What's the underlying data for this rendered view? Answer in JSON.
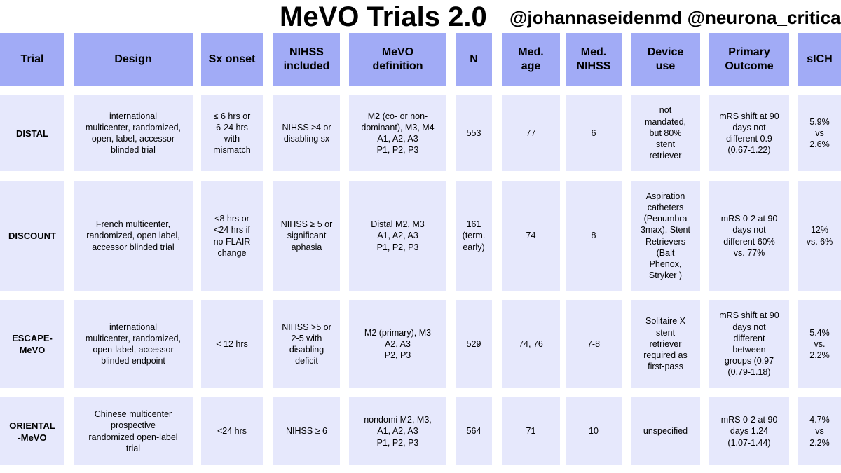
{
  "title": "MeVO Trials 2.0",
  "handles": "@johannaseidenmd @neurona_critica",
  "colors": {
    "header_bg": "#a1abf6",
    "cell_bg": "#e6e8fc"
  },
  "columns": [
    "Trial",
    "Design",
    "Sx onset",
    "NIHSS\nincluded",
    "MeVO\ndefinition",
    "N",
    "Med.\nage",
    "Med.\nNIHSS",
    "Device\nuse",
    "Primary\nOutcome",
    "sICH"
  ],
  "rows": [
    [
      "DISTAL",
      "international\nmulticenter, randomized,\nopen, label, accessor\nblinded trial",
      "≤ 6 hrs or\n6-24 hrs\nwith\nmismatch",
      "NIHSS ≥4 or\ndisabling sx",
      "M2 (co- or non-\ndominant), M3, M4\nA1, A2, A3\nP1, P2, P3",
      "553",
      "77",
      "6",
      "not\nmandated,\nbut 80%\nstent\nretriever",
      "mRS shift at 90\ndays not\ndifferent  0.9\n(0.67-1.22)",
      "5.9%\nvs\n2.6%"
    ],
    [
      "DISCOUNT",
      "French multicenter,\nrandomized, open label,\naccessor blinded trial",
      "<8 hrs or\n<24 hrs if\nno FLAIR\nchange",
      "NIHSS ≥ 5 or\nsignificant\naphasia",
      "Distal M2, M3\nA1, A2, A3\nP1, P2, P3",
      "161\n(term.\nearly)",
      "74",
      "8",
      "Aspiration\ncatheters\n(Penumbra\n3max), Stent\nRetrievers\n(Balt\nPhenox,\nStryker )",
      "mRS 0-2 at 90\ndays not\ndifferent 60%\nvs. 77%",
      "12%\nvs. 6%"
    ],
    [
      "ESCAPE-\nMeVO",
      "international\nmulticenter, randomized,\nopen-label, accessor\nblinded endpoint",
      "< 12 hrs",
      "NIHSS >5 or\n2-5 with\ndisabling\ndeficit",
      "M2 (primary), M3\nA2, A3\nP2, P3",
      "529",
      "74, 76",
      "7-8",
      "Solitaire X\nstent\nretriever\nrequired as\nfirst-pass",
      "mRS shift at 90\ndays not\ndifferent\nbetween\ngroups (0.97\n(0.79-1.18)",
      "5.4%\nvs.\n2.2%"
    ],
    [
      "ORIENTAL\n-MeVO",
      "Chinese multicenter\nprospective\nrandomized open-label\ntrial",
      "<24 hrs",
      "NIHSS ≥ 6",
      "nondomi M2, M3,\nA1, A2, A3\nP1, P2, P3",
      "564",
      "71",
      "10",
      "unspecified",
      "mRS 0-2 at 90\ndays 1.24\n(1.07-1.44)",
      "4.7%\nvs\n2.2%"
    ]
  ]
}
